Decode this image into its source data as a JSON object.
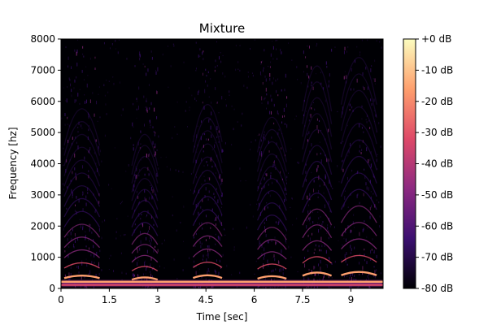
{
  "chart_data": {
    "type": "heatmap",
    "title": "Mixture",
    "xlabel": "Time [sec]",
    "ylabel": "Frequency [hz]",
    "xlim": [
      0,
      10
    ],
    "ylim": [
      0,
      8000
    ],
    "x_ticks": [
      0,
      1.5,
      3,
      4.5,
      6,
      7.5,
      9
    ],
    "x_tick_labels": [
      "0",
      "1.5",
      "3",
      "4.5",
      "6",
      "7.5",
      "9"
    ],
    "y_ticks": [
      0,
      1000,
      2000,
      3000,
      4000,
      5000,
      6000,
      7000,
      8000
    ],
    "y_tick_labels": [
      "0",
      "1000",
      "2000",
      "3000",
      "4000",
      "5000",
      "6000",
      "7000",
      "8000"
    ],
    "colormap": "magma",
    "colorbar": {
      "range": [
        -80,
        0
      ],
      "unit": "dB",
      "ticks": [
        0,
        -10,
        -20,
        -30,
        -40,
        -50,
        -60,
        -70,
        -80
      ],
      "tick_labels": [
        "+0 dB",
        "-10 dB",
        "-20 dB",
        "-30 dB",
        "-40 dB",
        "-50 dB",
        "-60 dB",
        "-70 dB",
        "-80 dB"
      ]
    },
    "constant_tone_band_hz": [
      60,
      260
    ],
    "syllables": [
      {
        "start": 0.1,
        "end": 1.2,
        "peak_f0_hz": 420
      },
      {
        "start": 2.2,
        "end": 3.0,
        "peak_f0_hz": 360
      },
      {
        "start": 4.1,
        "end": 5.0,
        "peak_f0_hz": 430
      },
      {
        "start": 6.1,
        "end": 7.0,
        "peak_f0_hz": 400
      },
      {
        "start": 7.5,
        "end": 8.4,
        "peak_f0_hz": 520
      },
      {
        "start": 8.7,
        "end": 9.8,
        "peak_f0_hz": 540
      }
    ],
    "colors": {
      "c0": "#000004",
      "c1": "#3b0f70",
      "c2": "#8c2981",
      "c3": "#de4968",
      "c4": "#fe9f6d",
      "c5": "#fcfdbf"
    }
  }
}
